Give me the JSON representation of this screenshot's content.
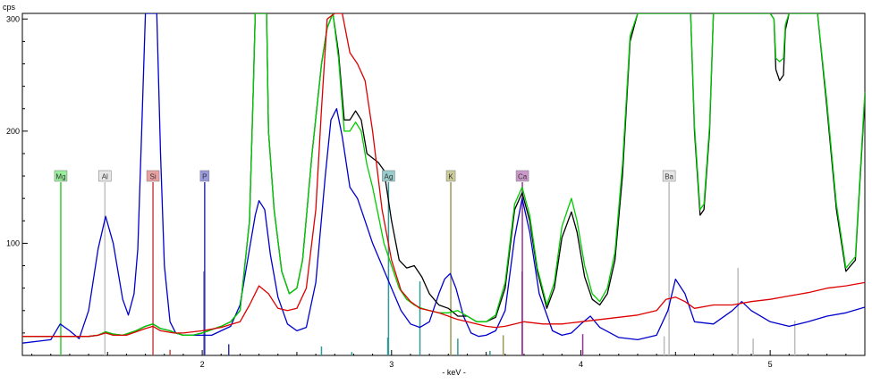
{
  "chart_data": {
    "type": "line",
    "title": "",
    "xlabel": "- keV -",
    "ylabel": "cps",
    "xlim": [
      1.05,
      5.5
    ],
    "ylim": [
      0,
      305
    ],
    "x_ticks": [
      "2",
      "3",
      "4",
      "5"
    ],
    "x_tick_values": [
      2,
      3,
      4,
      5
    ],
    "y_ticks": [
      "100",
      "200",
      "300"
    ],
    "y_tick_values": [
      100,
      200,
      300
    ],
    "grid": false,
    "legend": "none",
    "element_markers": [
      {
        "label": "Mg",
        "energy": 1.253,
        "color": "#33cc33",
        "fill": "#99ee99"
      },
      {
        "label": "Al",
        "energy": 1.486,
        "color": "#c0c0c0",
        "fill": "#e6e6e6"
      },
      {
        "label": "Si",
        "energy": 1.74,
        "color": "#cc4444",
        "fill": "#e8a0a0"
      },
      {
        "label": "P",
        "energy": 2.013,
        "color": "#3333aa",
        "fill": "#9999dd"
      },
      {
        "label": "Ag",
        "energy": 2.984,
        "color": "#339999",
        "fill": "#99cccc"
      },
      {
        "label": "K",
        "energy": 3.313,
        "color": "#999955",
        "fill": "#cccc99"
      },
      {
        "label": "Ca",
        "energy": 3.691,
        "color": "#993399",
        "fill": "#cc99cc"
      },
      {
        "label": "Ba",
        "energy": 4.466,
        "color": "#bbbbbb",
        "fill": "#e6e6e6"
      }
    ],
    "reference_lines": [
      {
        "energy": 1.83,
        "value": 5,
        "color": "#cc4444"
      },
      {
        "energy": 2.01,
        "value": 75,
        "color": "#3333aa"
      },
      {
        "energy": 2.14,
        "value": 10,
        "color": "#3333aa"
      },
      {
        "energy": 2.63,
        "value": 8,
        "color": "#339999"
      },
      {
        "energy": 2.79,
        "value": 3,
        "color": "#339999"
      },
      {
        "energy": 2.98,
        "value": 16,
        "color": "#339999"
      },
      {
        "energy": 3.15,
        "value": 66,
        "color": "#339999"
      },
      {
        "energy": 3.35,
        "value": 15,
        "color": "#339999"
      },
      {
        "energy": 3.52,
        "value": 4,
        "color": "#339999"
      },
      {
        "energy": 3.59,
        "value": 18,
        "color": "#999955"
      },
      {
        "energy": 3.69,
        "value": 75,
        "color": "#993399"
      },
      {
        "energy": 4.01,
        "value": 19,
        "color": "#993399"
      },
      {
        "energy": 4.44,
        "value": 17,
        "color": "#bbbbbb"
      },
      {
        "energy": 4.83,
        "value": 78,
        "color": "#bbbbbb"
      },
      {
        "energy": 4.91,
        "value": 15,
        "color": "#bbbbbb"
      },
      {
        "energy": 5.13,
        "value": 31,
        "color": "#bbbbbb"
      }
    ],
    "series": [
      {
        "name": "",
        "color": "#0000cc",
        "x": [
          1.05,
          1.2,
          1.25,
          1.3,
          1.35,
          1.4,
          1.45,
          1.49,
          1.53,
          1.58,
          1.61,
          1.64,
          1.66,
          1.68,
          1.7,
          1.72,
          1.74,
          1.76,
          1.78,
          1.8,
          1.83,
          1.86,
          1.9,
          1.95,
          2.0,
          2.05,
          2.1,
          2.15,
          2.2,
          2.25,
          2.28,
          2.3,
          2.33,
          2.36,
          2.4,
          2.45,
          2.5,
          2.55,
          2.6,
          2.65,
          2.68,
          2.71,
          2.74,
          2.78,
          2.82,
          2.86,
          2.9,
          2.95,
          3.0,
          3.05,
          3.1,
          3.15,
          3.2,
          3.25,
          3.28,
          3.31,
          3.34,
          3.38,
          3.42,
          3.46,
          3.5,
          3.55,
          3.6,
          3.65,
          3.69,
          3.73,
          3.78,
          3.85,
          3.9,
          3.95,
          4.0,
          4.05,
          4.1,
          4.2,
          4.3,
          4.4,
          4.46,
          4.5,
          4.55,
          4.6,
          4.7,
          4.8,
          4.85,
          4.9,
          5.0,
          5.1,
          5.2,
          5.3,
          5.4,
          5.5
        ],
        "y": [
          11,
          14,
          28,
          22,
          15,
          40,
          95,
          124,
          100,
          50,
          36,
          55,
          95,
          200,
          305,
          305,
          305,
          305,
          180,
          80,
          30,
          20,
          18,
          18,
          18,
          18,
          22,
          26,
          45,
          95,
          125,
          138,
          130,
          90,
          52,
          28,
          22,
          25,
          65,
          160,
          210,
          220,
          195,
          150,
          140,
          120,
          100,
          80,
          60,
          40,
          28,
          25,
          30,
          55,
          68,
          73,
          60,
          35,
          20,
          17,
          18,
          22,
          40,
          105,
          140,
          110,
          55,
          22,
          18,
          20,
          28,
          35,
          25,
          16,
          14,
          18,
          40,
          68,
          55,
          30,
          28,
          40,
          48,
          40,
          30,
          26,
          30,
          35,
          38,
          43
        ]
      },
      {
        "name": "",
        "color": "#000000",
        "x": [
          1.05,
          1.2,
          1.3,
          1.4,
          1.45,
          1.49,
          1.53,
          1.58,
          1.65,
          1.7,
          1.74,
          1.78,
          1.83,
          1.86,
          1.9,
          1.95,
          2.0,
          2.1,
          2.15,
          2.2,
          2.25,
          2.27,
          2.28,
          2.31,
          2.34,
          2.35,
          2.38,
          2.42,
          2.46,
          2.5,
          2.53,
          2.58,
          2.63,
          2.66,
          2.69,
          2.72,
          2.75,
          2.78,
          2.81,
          2.84,
          2.87,
          2.9,
          2.93,
          2.96,
          3.0,
          3.04,
          3.08,
          3.12,
          3.16,
          3.2,
          3.25,
          3.3,
          3.35,
          3.4,
          3.45,
          3.5,
          3.55,
          3.6,
          3.65,
          3.69,
          3.73,
          3.77,
          3.82,
          3.86,
          3.9,
          3.95,
          3.98,
          4.02,
          4.06,
          4.1,
          4.14,
          4.18,
          4.22,
          4.26,
          4.3,
          4.33,
          4.37,
          4.4,
          4.43,
          4.46,
          4.49,
          4.53,
          4.58,
          4.6,
          4.63,
          4.65,
          4.68,
          4.7,
          4.73,
          4.77,
          4.8,
          4.85,
          4.88,
          4.92,
          4.96,
          5.0,
          5.02,
          5.03,
          5.05,
          5.07,
          5.08,
          5.1,
          5.15,
          5.2,
          5.25,
          5.3,
          5.35,
          5.4,
          5.45,
          5.5
        ],
        "y": [
          17,
          17,
          17,
          17,
          18,
          21,
          19,
          18,
          22,
          26,
          28,
          24,
          22,
          20,
          18,
          18,
          20,
          26,
          30,
          40,
          120,
          240,
          305,
          305,
          305,
          200,
          130,
          75,
          55,
          60,
          85,
          180,
          260,
          292,
          305,
          270,
          210,
          210,
          218,
          210,
          180,
          176,
          172,
          165,
          120,
          85,
          78,
          80,
          70,
          55,
          45,
          42,
          35,
          35,
          30,
          30,
          34,
          60,
          130,
          145,
          120,
          75,
          42,
          60,
          105,
          128,
          110,
          70,
          50,
          45,
          55,
          85,
          160,
          280,
          305,
          305,
          305,
          305,
          305,
          305,
          305,
          305,
          305,
          200,
          125,
          130,
          200,
          305,
          305,
          305,
          305,
          305,
          305,
          305,
          305,
          305,
          300,
          255,
          245,
          250,
          290,
          305,
          305,
          305,
          305,
          220,
          130,
          75,
          85,
          230
        ]
      },
      {
        "name": "",
        "color": "#00cc00",
        "x": [
          1.05,
          1.2,
          1.3,
          1.4,
          1.45,
          1.49,
          1.53,
          1.58,
          1.65,
          1.7,
          1.74,
          1.78,
          1.83,
          1.86,
          1.9,
          1.95,
          2.0,
          2.1,
          2.15,
          2.2,
          2.25,
          2.27,
          2.28,
          2.31,
          2.34,
          2.35,
          2.38,
          2.42,
          2.46,
          2.5,
          2.53,
          2.58,
          2.63,
          2.66,
          2.69,
          2.72,
          2.75,
          2.78,
          2.81,
          2.84,
          2.87,
          2.9,
          2.93,
          2.96,
          3.0,
          3.04,
          3.08,
          3.12,
          3.16,
          3.2,
          3.25,
          3.3,
          3.35,
          3.4,
          3.45,
          3.5,
          3.55,
          3.6,
          3.65,
          3.69,
          3.73,
          3.77,
          3.82,
          3.86,
          3.9,
          3.95,
          3.98,
          4.02,
          4.06,
          4.1,
          4.14,
          4.18,
          4.22,
          4.26,
          4.3,
          4.33,
          4.37,
          4.4,
          4.43,
          4.46,
          4.49,
          4.53,
          4.58,
          4.6,
          4.63,
          4.65,
          4.68,
          4.7,
          4.73,
          4.77,
          4.8,
          4.85,
          4.88,
          4.92,
          4.96,
          5.0,
          5.02,
          5.03,
          5.05,
          5.07,
          5.08,
          5.1,
          5.15,
          5.2,
          5.25,
          5.3,
          5.35,
          5.4,
          5.45,
          5.5
        ],
        "y": [
          17,
          17,
          17,
          17,
          18,
          21,
          19,
          18,
          22,
          26,
          28,
          24,
          22,
          20,
          18,
          18,
          20,
          26,
          30,
          40,
          120,
          240,
          305,
          305,
          305,
          200,
          130,
          75,
          55,
          60,
          85,
          180,
          260,
          292,
          305,
          265,
          200,
          200,
          208,
          200,
          170,
          150,
          125,
          100,
          80,
          60,
          50,
          45,
          42,
          40,
          38,
          38,
          40,
          35,
          30,
          30,
          36,
          65,
          135,
          150,
          125,
          78,
          45,
          65,
          115,
          140,
          120,
          80,
          55,
          48,
          60,
          92,
          170,
          285,
          305,
          305,
          305,
          305,
          305,
          305,
          305,
          305,
          305,
          205,
          130,
          135,
          205,
          305,
          305,
          305,
          305,
          305,
          305,
          305,
          305,
          305,
          300,
          265,
          262,
          265,
          295,
          305,
          305,
          305,
          305,
          225,
          135,
          78,
          88,
          235
        ]
      },
      {
        "name": "",
        "color": "#dd0000",
        "x": [
          1.05,
          1.2,
          1.3,
          1.4,
          1.45,
          1.49,
          1.53,
          1.6,
          1.7,
          1.74,
          1.78,
          1.85,
          1.9,
          2.0,
          2.1,
          2.2,
          2.25,
          2.3,
          2.35,
          2.4,
          2.45,
          2.5,
          2.55,
          2.6,
          2.63,
          2.66,
          2.7,
          2.74,
          2.78,
          2.82,
          2.86,
          2.9,
          2.95,
          3.0,
          3.05,
          3.1,
          3.15,
          3.2,
          3.25,
          3.3,
          3.35,
          3.4,
          3.45,
          3.5,
          3.55,
          3.6,
          3.7,
          3.8,
          3.9,
          4.0,
          4.1,
          4.2,
          4.3,
          4.4,
          4.45,
          4.5,
          4.55,
          4.6,
          4.7,
          4.8,
          4.9,
          5.0,
          5.1,
          5.2,
          5.3,
          5.4,
          5.5
        ],
        "y": [
          17,
          17,
          17,
          17,
          18,
          20,
          18,
          18,
          24,
          26,
          22,
          20,
          20,
          22,
          25,
          30,
          45,
          62,
          55,
          42,
          40,
          42,
          60,
          130,
          220,
          300,
          305,
          305,
          270,
          260,
          245,
          200,
          130,
          85,
          58,
          48,
          42,
          40,
          38,
          35,
          32,
          30,
          28,
          26,
          25,
          26,
          30,
          28,
          28,
          30,
          32,
          34,
          36,
          40,
          50,
          52,
          48,
          42,
          45,
          45,
          48,
          50,
          53,
          56,
          60,
          62,
          65
        ]
      }
    ]
  }
}
